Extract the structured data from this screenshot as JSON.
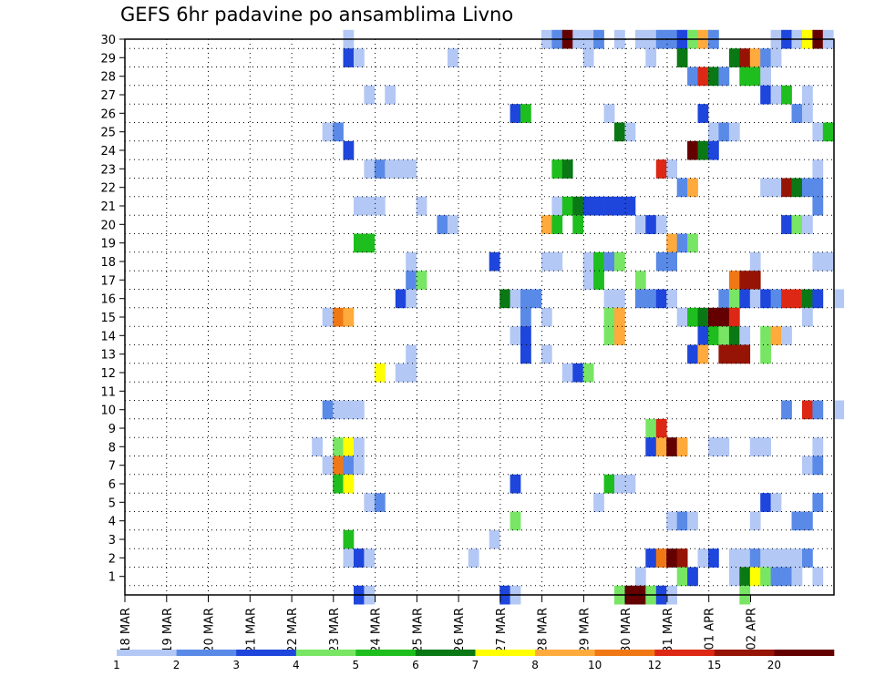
{
  "title": "GEFS 6hr padavine po ansamblima Livno",
  "chart_data": {
    "type": "heatmap",
    "title": "GEFS 6hr padavine po ansamblima Livno",
    "x_tick_labels": [
      "18 MAR",
      "19 MAR",
      "20 MAR",
      "21 MAR",
      "22 MAR",
      "23 MAR",
      "24 MAR",
      "25 MAR",
      "26 MAR",
      "27 MAR",
      "28 MAR",
      "29 MAR",
      "30 MAR",
      "31 MAR",
      "01 APR",
      "02 APR"
    ],
    "y_tick_labels": [
      "1",
      "2",
      "3",
      "4",
      "5",
      "6",
      "7",
      "8",
      "9",
      "10",
      "11",
      "12",
      "13",
      "14",
      "15",
      "16",
      "17",
      "18",
      "19",
      "20",
      "21",
      "22",
      "23",
      "24",
      "25",
      "26",
      "27",
      "28",
      "29",
      "30"
    ],
    "time_steps_per_day": 4,
    "grid": true,
    "legend": {
      "placement": "bottom",
      "labels": [
        "1",
        "2",
        "3",
        "4",
        "5",
        "6",
        "7",
        "8",
        "10",
        "12",
        "15",
        "20"
      ],
      "colors": [
        "#b4c8f5",
        "#5a8ae8",
        "#1e46dc",
        "#78e664",
        "#1ebe1e",
        "#0a7814",
        "#ffff00",
        "#ffaa3c",
        "#f07814",
        "#dc2814",
        "#961405",
        "#640000"
      ]
    },
    "class_colors": {
      "1": "#b4c8f5",
      "2": "#5a8ae8",
      "3": "#1e46dc",
      "4": "#78e664",
      "5": "#1ebe1e",
      "6": "#0a7814",
      "7": "#ffff00",
      "8": "#ffaa3c",
      "9": "#f07814",
      "10": "#dc2814",
      "11": "#961405",
      "12": "#640000"
    },
    "rows": {
      "30": "....................................................:..1...1.1c.1...2.3421....1.37c1",
      "29": "....................................................:2.1.............1......2.......1.....1...6..cc8a1",
      "28": "................................................................................................2a621.",
      "27": "................................................................1..1...........................31.5.1",
      "26": ".......................................................................................35........1......2.",
      "25": ".............................................................................................11..6..1111.4",
      "24": "..........................................................................................3..c63",
      "23": "..........................................................................................................11222.......................45.........a1.......1",
      "22": "...................................................................................................28.......11c61",
      "21": "..........................................................................................111..1.....1455333333...2",
      "20": "...................................................................................2..21...8.5.4..............13....31",
      "19": "..................................................................................5.5................7.....821.4",
      "18": "......................................................................................................1.3....1...1111..1",
      "17": "...............................................................................................1..4.....22.......b1",
      "16": "...............................................................................................1..1.3..................2...2.....b",
      "15": "...........................................................................................1121..66.a1.3a...3",
      "14": "...................................................................................",
      "13": "",
      "12": "",
      "11": "",
      "10": "",
      "9": "",
      "8": "",
      "7": "",
      "6": "",
      "5": "",
      "4": "",
      "3": "",
      "2": "",
      "1": "",
      "0": ""
    },
    "cells": [
      [
        30,
        21,
        1
      ],
      [
        30,
        40,
        1
      ],
      [
        30,
        41,
        2
      ],
      [
        30,
        42,
        12
      ],
      [
        30,
        43,
        1
      ],
      [
        30,
        44,
        1
      ],
      [
        30,
        45,
        2
      ],
      [
        30,
        47,
        1
      ],
      [
        30,
        49,
        1
      ],
      [
        30,
        50,
        1
      ],
      [
        30,
        51,
        2
      ],
      [
        30,
        52,
        2
      ],
      [
        30,
        53,
        3
      ],
      [
        30,
        54,
        4
      ],
      [
        30,
        55,
        8
      ],
      [
        30,
        56,
        2
      ],
      [
        30,
        62,
        1
      ],
      [
        30,
        63,
        3
      ],
      [
        30,
        64,
        1
      ],
      [
        30,
        65,
        7
      ],
      [
        30,
        66,
        12
      ],
      [
        30,
        67,
        1
      ],
      [
        29,
        21,
        3
      ],
      [
        29,
        22,
        1
      ],
      [
        29,
        31,
        1
      ],
      [
        29,
        44,
        1
      ],
      [
        29,
        50,
        1
      ],
      [
        29,
        53,
        6
      ],
      [
        29,
        58,
        6
      ],
      [
        29,
        59,
        11
      ],
      [
        29,
        60,
        8
      ],
      [
        29,
        61,
        2
      ],
      [
        29,
        62,
        1
      ],
      [
        28,
        54,
        2
      ],
      [
        28,
        55,
        10
      ],
      [
        28,
        56,
        6
      ],
      [
        28,
        57,
        2
      ],
      [
        28,
        59,
        5
      ],
      [
        28,
        60,
        5
      ],
      [
        28,
        61,
        1
      ],
      [
        27,
        23,
        1
      ],
      [
        27,
        25,
        1
      ],
      [
        27,
        61,
        3
      ],
      [
        27,
        62,
        1
      ],
      [
        27,
        63,
        5
      ],
      [
        27,
        65,
        1
      ],
      [
        26,
        37,
        3
      ],
      [
        26,
        38,
        5
      ],
      [
        26,
        46,
        1
      ],
      [
        26,
        55,
        3
      ],
      [
        26,
        64,
        2
      ],
      [
        26,
        65,
        1
      ],
      [
        25,
        19,
        1
      ],
      [
        25,
        20,
        2
      ],
      [
        25,
        47,
        6
      ],
      [
        25,
        48,
        1
      ],
      [
        25,
        56,
        1
      ],
      [
        25,
        57,
        2
      ],
      [
        25,
        58,
        1
      ],
      [
        25,
        66,
        1
      ],
      [
        25,
        67,
        5
      ],
      [
        24,
        21,
        3
      ],
      [
        24,
        54,
        12
      ],
      [
        24,
        55,
        6
      ],
      [
        24,
        56,
        3
      ],
      [
        23,
        23,
        1
      ],
      [
        23,
        24,
        2
      ],
      [
        23,
        25,
        1
      ],
      [
        23,
        26,
        1
      ],
      [
        23,
        27,
        1
      ],
      [
        23,
        41,
        5
      ],
      [
        23,
        42,
        6
      ],
      [
        23,
        51,
        10
      ],
      [
        23,
        52,
        1
      ],
      [
        23,
        66,
        1
      ],
      [
        22,
        53,
        2
      ],
      [
        22,
        54,
        8
      ],
      [
        22,
        61,
        1
      ],
      [
        22,
        62,
        1
      ],
      [
        22,
        63,
        11
      ],
      [
        22,
        64,
        6
      ],
      [
        22,
        65,
        2
      ],
      [
        22,
        66,
        2
      ],
      [
        21,
        22,
        1
      ],
      [
        21,
        23,
        1
      ],
      [
        21,
        24,
        1
      ],
      [
        21,
        28,
        1
      ],
      [
        21,
        41,
        1
      ],
      [
        21,
        42,
        5
      ],
      [
        21,
        43,
        6
      ],
      [
        21,
        44,
        3
      ],
      [
        21,
        45,
        3
      ],
      [
        21,
        46,
        3
      ],
      [
        21,
        47,
        3
      ],
      [
        21,
        48,
        3
      ],
      [
        21,
        66,
        2
      ],
      [
        20,
        30,
        2
      ],
      [
        20,
        31,
        1
      ],
      [
        20,
        40,
        8
      ],
      [
        20,
        41,
        5
      ],
      [
        20,
        43,
        5
      ],
      [
        20,
        49,
        1
      ],
      [
        20,
        50,
        3
      ],
      [
        20,
        51,
        1
      ],
      [
        20,
        63,
        3
      ],
      [
        20,
        64,
        4
      ],
      [
        20,
        65,
        1
      ],
      [
        19,
        22,
        5
      ],
      [
        19,
        23,
        5
      ],
      [
        19,
        52,
        8
      ],
      [
        19,
        53,
        2
      ],
      [
        19,
        54,
        4
      ],
      [
        18,
        27,
        1
      ],
      [
        18,
        35,
        3
      ],
      [
        18,
        40,
        1
      ],
      [
        18,
        41,
        1
      ],
      [
        18,
        44,
        1
      ],
      [
        18,
        45,
        5
      ],
      [
        18,
        46,
        2
      ],
      [
        18,
        47,
        4
      ],
      [
        18,
        51,
        2
      ],
      [
        18,
        52,
        2
      ],
      [
        18,
        60,
        1
      ],
      [
        18,
        66,
        1
      ],
      [
        18,
        67,
        1
      ],
      [
        17,
        27,
        2
      ],
      [
        17,
        28,
        4
      ],
      [
        17,
        44,
        1
      ],
      [
        17,
        45,
        5
      ],
      [
        17,
        49,
        4
      ],
      [
        17,
        58,
        9
      ],
      [
        17,
        59,
        11
      ],
      [
        17,
        60,
        11
      ],
      [
        16,
        26,
        3
      ],
      [
        16,
        27,
        1
      ],
      [
        16,
        36,
        6
      ],
      [
        16,
        37,
        1
      ],
      [
        16,
        38,
        2
      ],
      [
        16,
        39,
        2
      ],
      [
        16,
        46,
        1
      ],
      [
        16,
        47,
        1
      ],
      [
        16,
        49,
        2
      ],
      [
        16,
        50,
        2
      ],
      [
        16,
        51,
        3
      ],
      [
        16,
        52,
        1
      ],
      [
        16,
        57,
        2
      ],
      [
        16,
        58,
        4
      ],
      [
        16,
        59,
        3
      ],
      [
        16,
        60,
        1
      ],
      [
        16,
        61,
        3
      ],
      [
        16,
        62,
        2
      ],
      [
        16,
        63,
        10
      ],
      [
        16,
        64,
        10
      ],
      [
        16,
        65,
        6
      ],
      [
        16,
        66,
        3
      ],
      [
        16,
        68,
        1
      ],
      [
        15,
        19,
        1
      ],
      [
        15,
        20,
        9
      ],
      [
        15,
        21,
        8
      ],
      [
        15,
        38,
        2
      ],
      [
        15,
        40,
        1
      ],
      [
        15,
        46,
        4
      ],
      [
        15,
        47,
        8
      ],
      [
        15,
        53,
        1
      ],
      [
        15,
        54,
        5
      ],
      [
        15,
        55,
        6
      ],
      [
        15,
        56,
        12
      ],
      [
        15,
        57,
        12
      ],
      [
        15,
        58,
        10
      ],
      [
        15,
        65,
        1
      ],
      [
        14,
        37,
        1
      ],
      [
        14,
        38,
        3
      ],
      [
        14,
        46,
        4
      ],
      [
        14,
        47,
        8
      ],
      [
        14,
        55,
        3
      ],
      [
        14,
        56,
        5
      ],
      [
        14,
        57,
        4
      ],
      [
        14,
        58,
        6
      ],
      [
        14,
        59,
        1
      ],
      [
        14,
        61,
        4
      ],
      [
        14,
        62,
        8
      ],
      [
        14,
        63,
        1
      ],
      [
        13,
        27,
        1
      ],
      [
        13,
        40,
        1
      ],
      [
        13,
        38,
        3
      ],
      [
        13,
        57,
        11
      ],
      [
        13,
        58,
        11
      ],
      [
        13,
        59,
        11
      ],
      [
        13,
        54,
        3
      ],
      [
        13,
        55,
        8
      ],
      [
        13,
        61,
        4
      ],
      [
        12,
        24,
        7
      ],
      [
        12,
        26,
        1
      ],
      [
        12,
        27,
        1
      ],
      [
        12,
        42,
        1
      ],
      [
        12,
        43,
        3
      ],
      [
        12,
        44,
        4
      ],
      [
        10,
        19,
        2
      ],
      [
        10,
        20,
        1
      ],
      [
        10,
        21,
        1
      ],
      [
        10,
        22,
        1
      ],
      [
        10,
        63,
        2
      ],
      [
        10,
        65,
        10
      ],
      [
        10,
        66,
        2
      ],
      [
        10,
        68,
        1
      ],
      [
        9,
        50,
        4
      ],
      [
        9,
        51,
        10
      ],
      [
        8,
        18,
        1
      ],
      [
        8,
        20,
        4
      ],
      [
        8,
        21,
        7
      ],
      [
        8,
        22,
        1
      ],
      [
        8,
        50,
        3
      ],
      [
        8,
        51,
        8
      ],
      [
        8,
        52,
        12
      ],
      [
        8,
        53,
        8
      ],
      [
        8,
        56,
        1
      ],
      [
        8,
        57,
        1
      ],
      [
        8,
        60,
        1
      ],
      [
        8,
        61,
        1
      ],
      [
        8,
        66,
        1
      ],
      [
        7,
        19,
        1
      ],
      [
        7,
        20,
        9
      ],
      [
        7,
        21,
        2
      ],
      [
        7,
        22,
        1
      ],
      [
        7,
        65,
        1
      ],
      [
        7,
        66,
        2
      ],
      [
        6,
        20,
        5
      ],
      [
        6,
        21,
        7
      ],
      [
        6,
        37,
        3
      ],
      [
        6,
        46,
        5
      ],
      [
        6,
        47,
        1
      ],
      [
        6,
        48,
        1
      ],
      [
        5,
        23,
        1
      ],
      [
        5,
        24,
        2
      ],
      [
        5,
        45,
        1
      ],
      [
        5,
        61,
        3
      ],
      [
        5,
        62,
        1
      ],
      [
        5,
        66,
        2
      ],
      [
        4,
        37,
        4
      ],
      [
        4,
        52,
        1
      ],
      [
        4,
        53,
        2
      ],
      [
        4,
        54,
        1
      ],
      [
        4,
        60,
        1
      ],
      [
        4,
        64,
        2
      ],
      [
        4,
        65,
        2
      ],
      [
        3,
        21,
        5
      ],
      [
        3,
        35,
        1
      ],
      [
        2,
        21,
        1
      ],
      [
        2,
        22,
        3
      ],
      [
        2,
        23,
        1
      ],
      [
        2,
        33,
        1
      ],
      [
        2,
        50,
        3
      ],
      [
        2,
        51,
        9
      ],
      [
        2,
        52,
        12
      ],
      [
        2,
        53,
        11
      ],
      [
        2,
        55,
        1
      ],
      [
        2,
        56,
        3
      ],
      [
        2,
        58,
        1
      ],
      [
        2,
        59,
        1
      ],
      [
        2,
        60,
        2
      ],
      [
        2,
        61,
        1
      ],
      [
        2,
        62,
        1
      ],
      [
        2,
        63,
        1
      ],
      [
        2,
        64,
        1
      ],
      [
        2,
        65,
        2
      ],
      [
        1,
        49,
        1
      ],
      [
        1,
        53,
        4
      ],
      [
        1,
        54,
        3
      ],
      [
        1,
        58,
        1
      ],
      [
        1,
        59,
        6
      ],
      [
        1,
        60,
        7
      ],
      [
        1,
        61,
        4
      ],
      [
        1,
        62,
        2
      ],
      [
        1,
        63,
        2
      ],
      [
        1,
        64,
        1
      ],
      [
        1,
        66,
        1
      ],
      [
        0,
        22,
        3
      ],
      [
        0,
        23,
        1
      ],
      [
        0,
        36,
        3
      ],
      [
        0,
        37,
        1
      ],
      [
        0,
        47,
        4
      ],
      [
        0,
        48,
        12
      ],
      [
        0,
        49,
        12
      ],
      [
        0,
        50,
        4
      ],
      [
        0,
        51,
        3
      ],
      [
        0,
        52,
        1
      ],
      [
        0,
        59,
        4
      ]
    ]
  }
}
